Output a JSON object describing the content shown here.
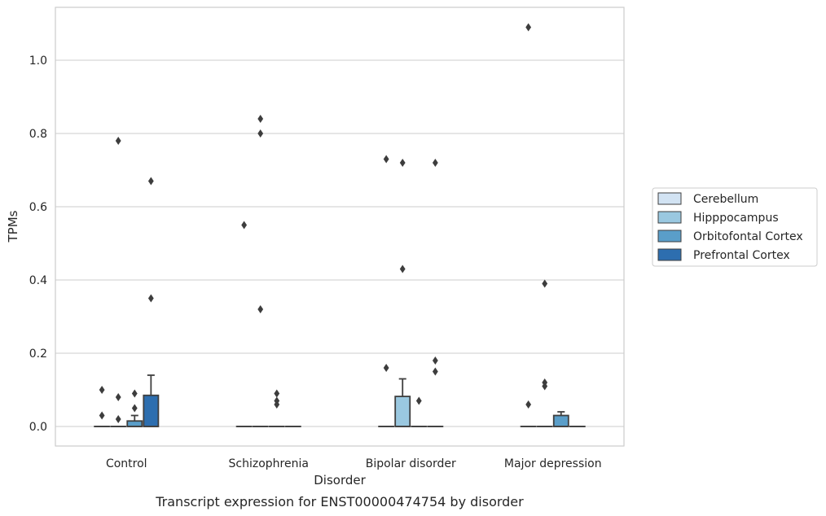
{
  "chart_data": {
    "type": "box",
    "caption": "Transcript expression for ENST00000474754 by disorder",
    "xlabel": "Disorder",
    "ylabel": "TPMs",
    "ylim": [
      -0.05,
      1.15
    ],
    "yticks": [
      "0.0",
      "0.2",
      "0.4",
      "0.6",
      "0.8",
      "1.0"
    ],
    "grid": "horizontal",
    "legend_position": "right",
    "categories": [
      "Control",
      "Schizophrenia",
      "Bipolar disorder",
      "Major depression"
    ],
    "series": [
      {
        "name": "Cerebellum",
        "color": "#d2e3f3",
        "boxes": [
          {
            "q1": 0,
            "median": 0,
            "q3": 0,
            "whisker_low": 0,
            "whisker_high": 0,
            "outliers": [
              0.1,
              0.03
            ]
          },
          {
            "q1": 0,
            "median": 0,
            "q3": 0,
            "whisker_low": 0,
            "whisker_high": 0,
            "outliers": [
              0.55
            ]
          },
          {
            "q1": 0,
            "median": 0,
            "q3": 0,
            "whisker_low": 0,
            "whisker_high": 0,
            "outliers": [
              0.73,
              0.16
            ]
          },
          {
            "q1": 0,
            "median": 0,
            "q3": 0,
            "whisker_low": 0,
            "whisker_high": 0,
            "outliers": [
              1.09,
              0.06
            ]
          }
        ]
      },
      {
        "name": "Hipppocampus",
        "color": "#9ac8e0",
        "boxes": [
          {
            "q1": 0,
            "median": 0,
            "q3": 0,
            "whisker_low": 0,
            "whisker_high": 0,
            "outliers": [
              0.78,
              0.08,
              0.02
            ]
          },
          {
            "q1": 0,
            "median": 0,
            "q3": 0,
            "whisker_low": 0,
            "whisker_high": 0,
            "outliers": [
              0.84,
              0.8,
              0.32
            ]
          },
          {
            "q1": 0,
            "median": 0,
            "q3": 0.082,
            "whisker_low": 0,
            "whisker_high": 0.13,
            "outliers": [
              0.72,
              0.43
            ]
          },
          {
            "q1": 0,
            "median": 0,
            "q3": 0,
            "whisker_low": 0,
            "whisker_high": 0,
            "outliers": [
              0.39,
              0.12,
              0.11
            ]
          }
        ]
      },
      {
        "name": "Orbitofontal Cortex",
        "color": "#5a9ec9",
        "boxes": [
          {
            "q1": 0,
            "median": 0,
            "q3": 0.015,
            "whisker_low": 0,
            "whisker_high": 0.03,
            "outliers": [
              0.09,
              0.05
            ]
          },
          {
            "q1": 0,
            "median": 0,
            "q3": 0,
            "whisker_low": 0,
            "whisker_high": 0,
            "outliers": [
              0.09,
              0.07,
              0.06
            ]
          },
          {
            "q1": 0,
            "median": 0,
            "q3": 0,
            "whisker_low": 0,
            "whisker_high": 0,
            "outliers": [
              0.07
            ]
          },
          {
            "q1": 0,
            "median": 0,
            "q3": 0.03,
            "whisker_low": 0,
            "whisker_high": 0.04,
            "outliers": []
          }
        ]
      },
      {
        "name": "Prefrontal Cortex",
        "color": "#2d6eaf",
        "boxes": [
          {
            "q1": 0,
            "median": 0,
            "q3": 0.085,
            "whisker_low": 0,
            "whisker_high": 0.14,
            "outliers": [
              0.67,
              0.35
            ]
          },
          {
            "q1": 0,
            "median": 0,
            "q3": 0,
            "whisker_low": 0,
            "whisker_high": 0,
            "outliers": []
          },
          {
            "q1": 0,
            "median": 0,
            "q3": 0,
            "whisker_low": 0,
            "whisker_high": 0,
            "outliers": [
              0.72,
              0.18,
              0.15
            ]
          },
          {
            "q1": 0,
            "median": 0,
            "q3": 0,
            "whisker_low": 0,
            "whisker_high": 0,
            "outliers": []
          }
        ]
      }
    ]
  }
}
